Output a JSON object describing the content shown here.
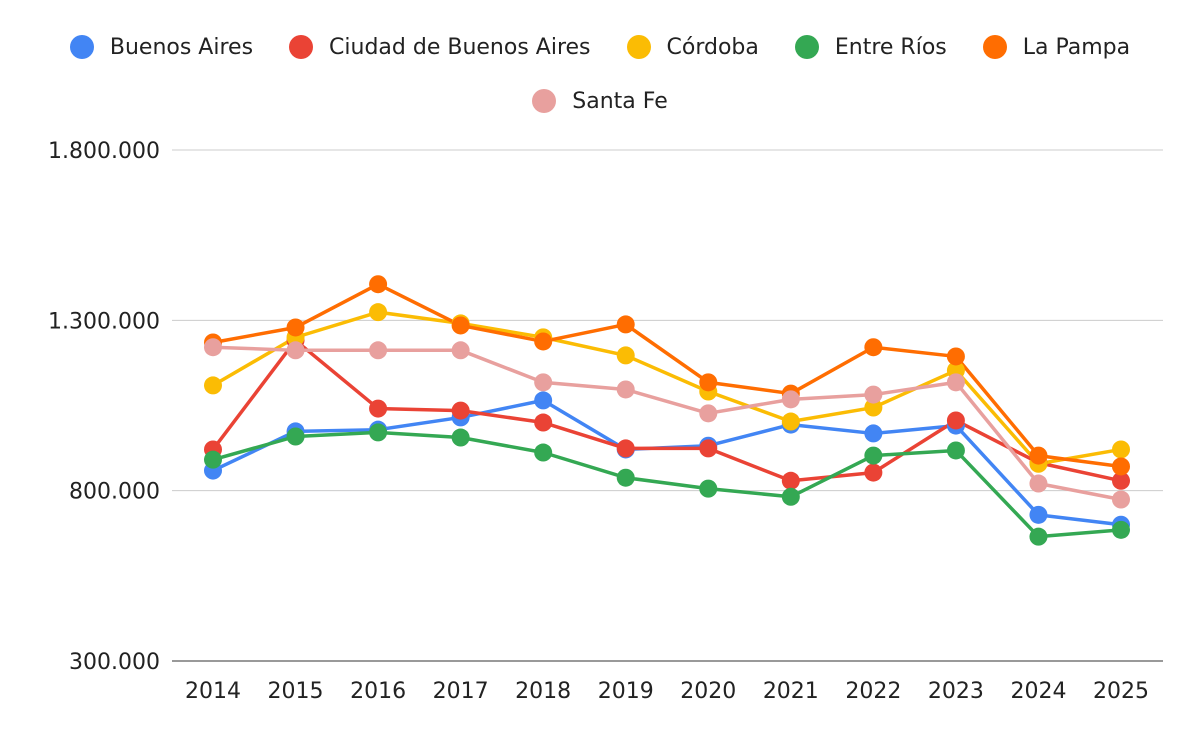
{
  "chart_data": {
    "type": "line",
    "title": "",
    "xlabel": "",
    "ylabel": "",
    "ylim": [
      300000,
      1800000
    ],
    "y_ticks": [
      300000,
      800000,
      1300000,
      1800000
    ],
    "y_tick_labels": [
      "300.000",
      "800.000",
      "1.300.000",
      "1.800.000"
    ],
    "grid": true,
    "legend_position": "top",
    "categories": [
      "2014",
      "2015",
      "2016",
      "2017",
      "2018",
      "2019",
      "2020",
      "2021",
      "2022",
      "2023",
      "2024",
      "2025"
    ],
    "series": [
      {
        "name": "Buenos Aires",
        "color": "#4285f4",
        "values": [
          859000,
          974000,
          979000,
          1015000,
          1065000,
          921000,
          932000,
          994000,
          968000,
          991000,
          729000,
          700000
        ]
      },
      {
        "name": "Ciudad de Buenos Aires",
        "color": "#ea4335",
        "values": [
          921000,
          1241000,
          1041000,
          1035000,
          1000000,
          924000,
          924000,
          829000,
          853000,
          1006000,
          882000,
          829000
        ]
      },
      {
        "name": "Córdoba",
        "color": "#fbbc04",
        "values": [
          1109000,
          1250000,
          1324000,
          1291000,
          1250000,
          1197000,
          1091000,
          1003000,
          1044000,
          1153000,
          879000,
          921000
        ]
      },
      {
        "name": "Entre Ríos",
        "color": "#34a853",
        "values": [
          891000,
          959000,
          971000,
          956000,
          912000,
          838000,
          806000,
          782000,
          903000,
          918000,
          665000,
          685000
        ]
      },
      {
        "name": "La Pampa",
        "color": "#ff6d01",
        "values": [
          1235000,
          1279000,
          1406000,
          1285000,
          1238000,
          1288000,
          1118000,
          1085000,
          1221000,
          1194000,
          903000,
          871000
        ]
      },
      {
        "name": "Santa Fe",
        "color": "#e8a09e",
        "values": [
          1221000,
          1212000,
          1212000,
          1212000,
          1118000,
          1097000,
          1027000,
          1068000,
          1082000,
          1118000,
          821000,
          774000
        ]
      }
    ]
  }
}
